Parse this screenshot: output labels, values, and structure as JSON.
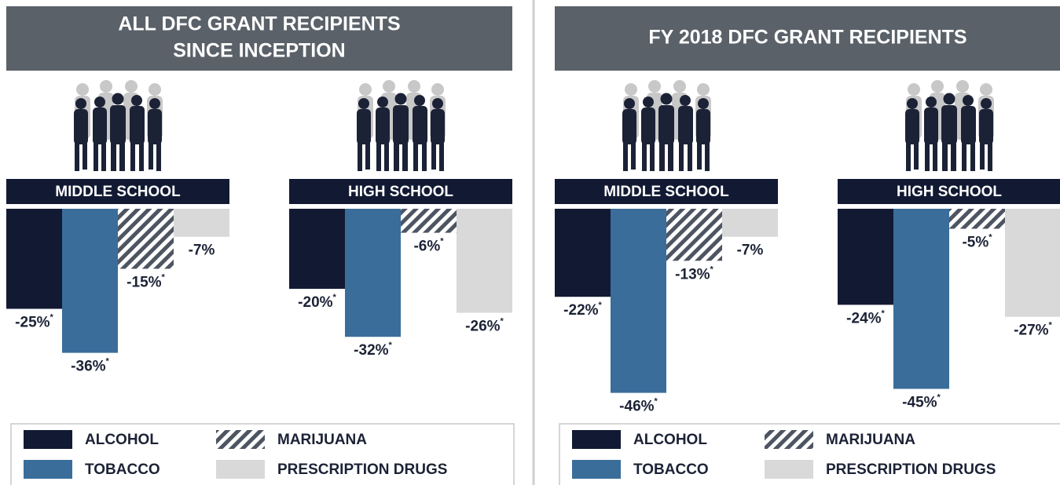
{
  "panels": [
    {
      "title": [
        "ALL DFC GRANT RECIPIENTS",
        "SINCE INCEPTION"
      ],
      "legend": [
        {
          "name": "ALCOHOL",
          "color": "#121a33"
        },
        {
          "name": "TOBACCO",
          "color": "#3a6d9a"
        },
        {
          "name": "MARIJUANA",
          "color": "#4d5562",
          "pattern": "hatch"
        },
        {
          "name": "PRESCRIPTION DRUGS",
          "color": "#d9d9d9"
        }
      ]
    },
    {
      "title": [
        "FY 2018 DFC GRANT RECIPIENTS"
      ],
      "legend": [
        {
          "name": "ALCOHOL",
          "color": "#121a33"
        },
        {
          "name": "TOBACCO",
          "color": "#3a6d9a"
        },
        {
          "name": "MARIJUANA",
          "color": "#4d5562",
          "pattern": "hatch"
        },
        {
          "name": "PRESCRIPTION DRUGS",
          "color": "#d9d9d9"
        }
      ]
    }
  ],
  "chart_data": [
    {
      "type": "bar",
      "title": "MIDDLE SCHOOL",
      "values": [
        -25,
        -36,
        -15,
        -7
      ],
      "value_labels": [
        "-25%*",
        "-36%*",
        "-15%*",
        "-7%"
      ],
      "ylim": [
        -50,
        0
      ]
    },
    {
      "type": "bar",
      "title": "HIGH SCHOOL",
      "values": [
        -20,
        -32,
        -6,
        -26
      ],
      "value_labels": [
        "-20%*",
        "-32%*",
        "-6%*",
        "-26%*"
      ],
      "ylim": [
        -50,
        0
      ]
    },
    {
      "type": "bar",
      "title": "MIDDLE SCHOOL",
      "values": [
        -22,
        -46,
        -13,
        -7
      ],
      "value_labels": [
        "-22%*",
        "-46%*",
        "-13%*",
        "-7%"
      ],
      "ylim": [
        -50,
        0
      ]
    },
    {
      "type": "bar",
      "title": "HIGH SCHOOL",
      "values": [
        -24,
        -45,
        -5,
        -27
      ],
      "value_labels": [
        "-24%*",
        "-45%*",
        "-5%*",
        "-27%*"
      ],
      "ylim": [
        -50,
        0
      ]
    }
  ]
}
